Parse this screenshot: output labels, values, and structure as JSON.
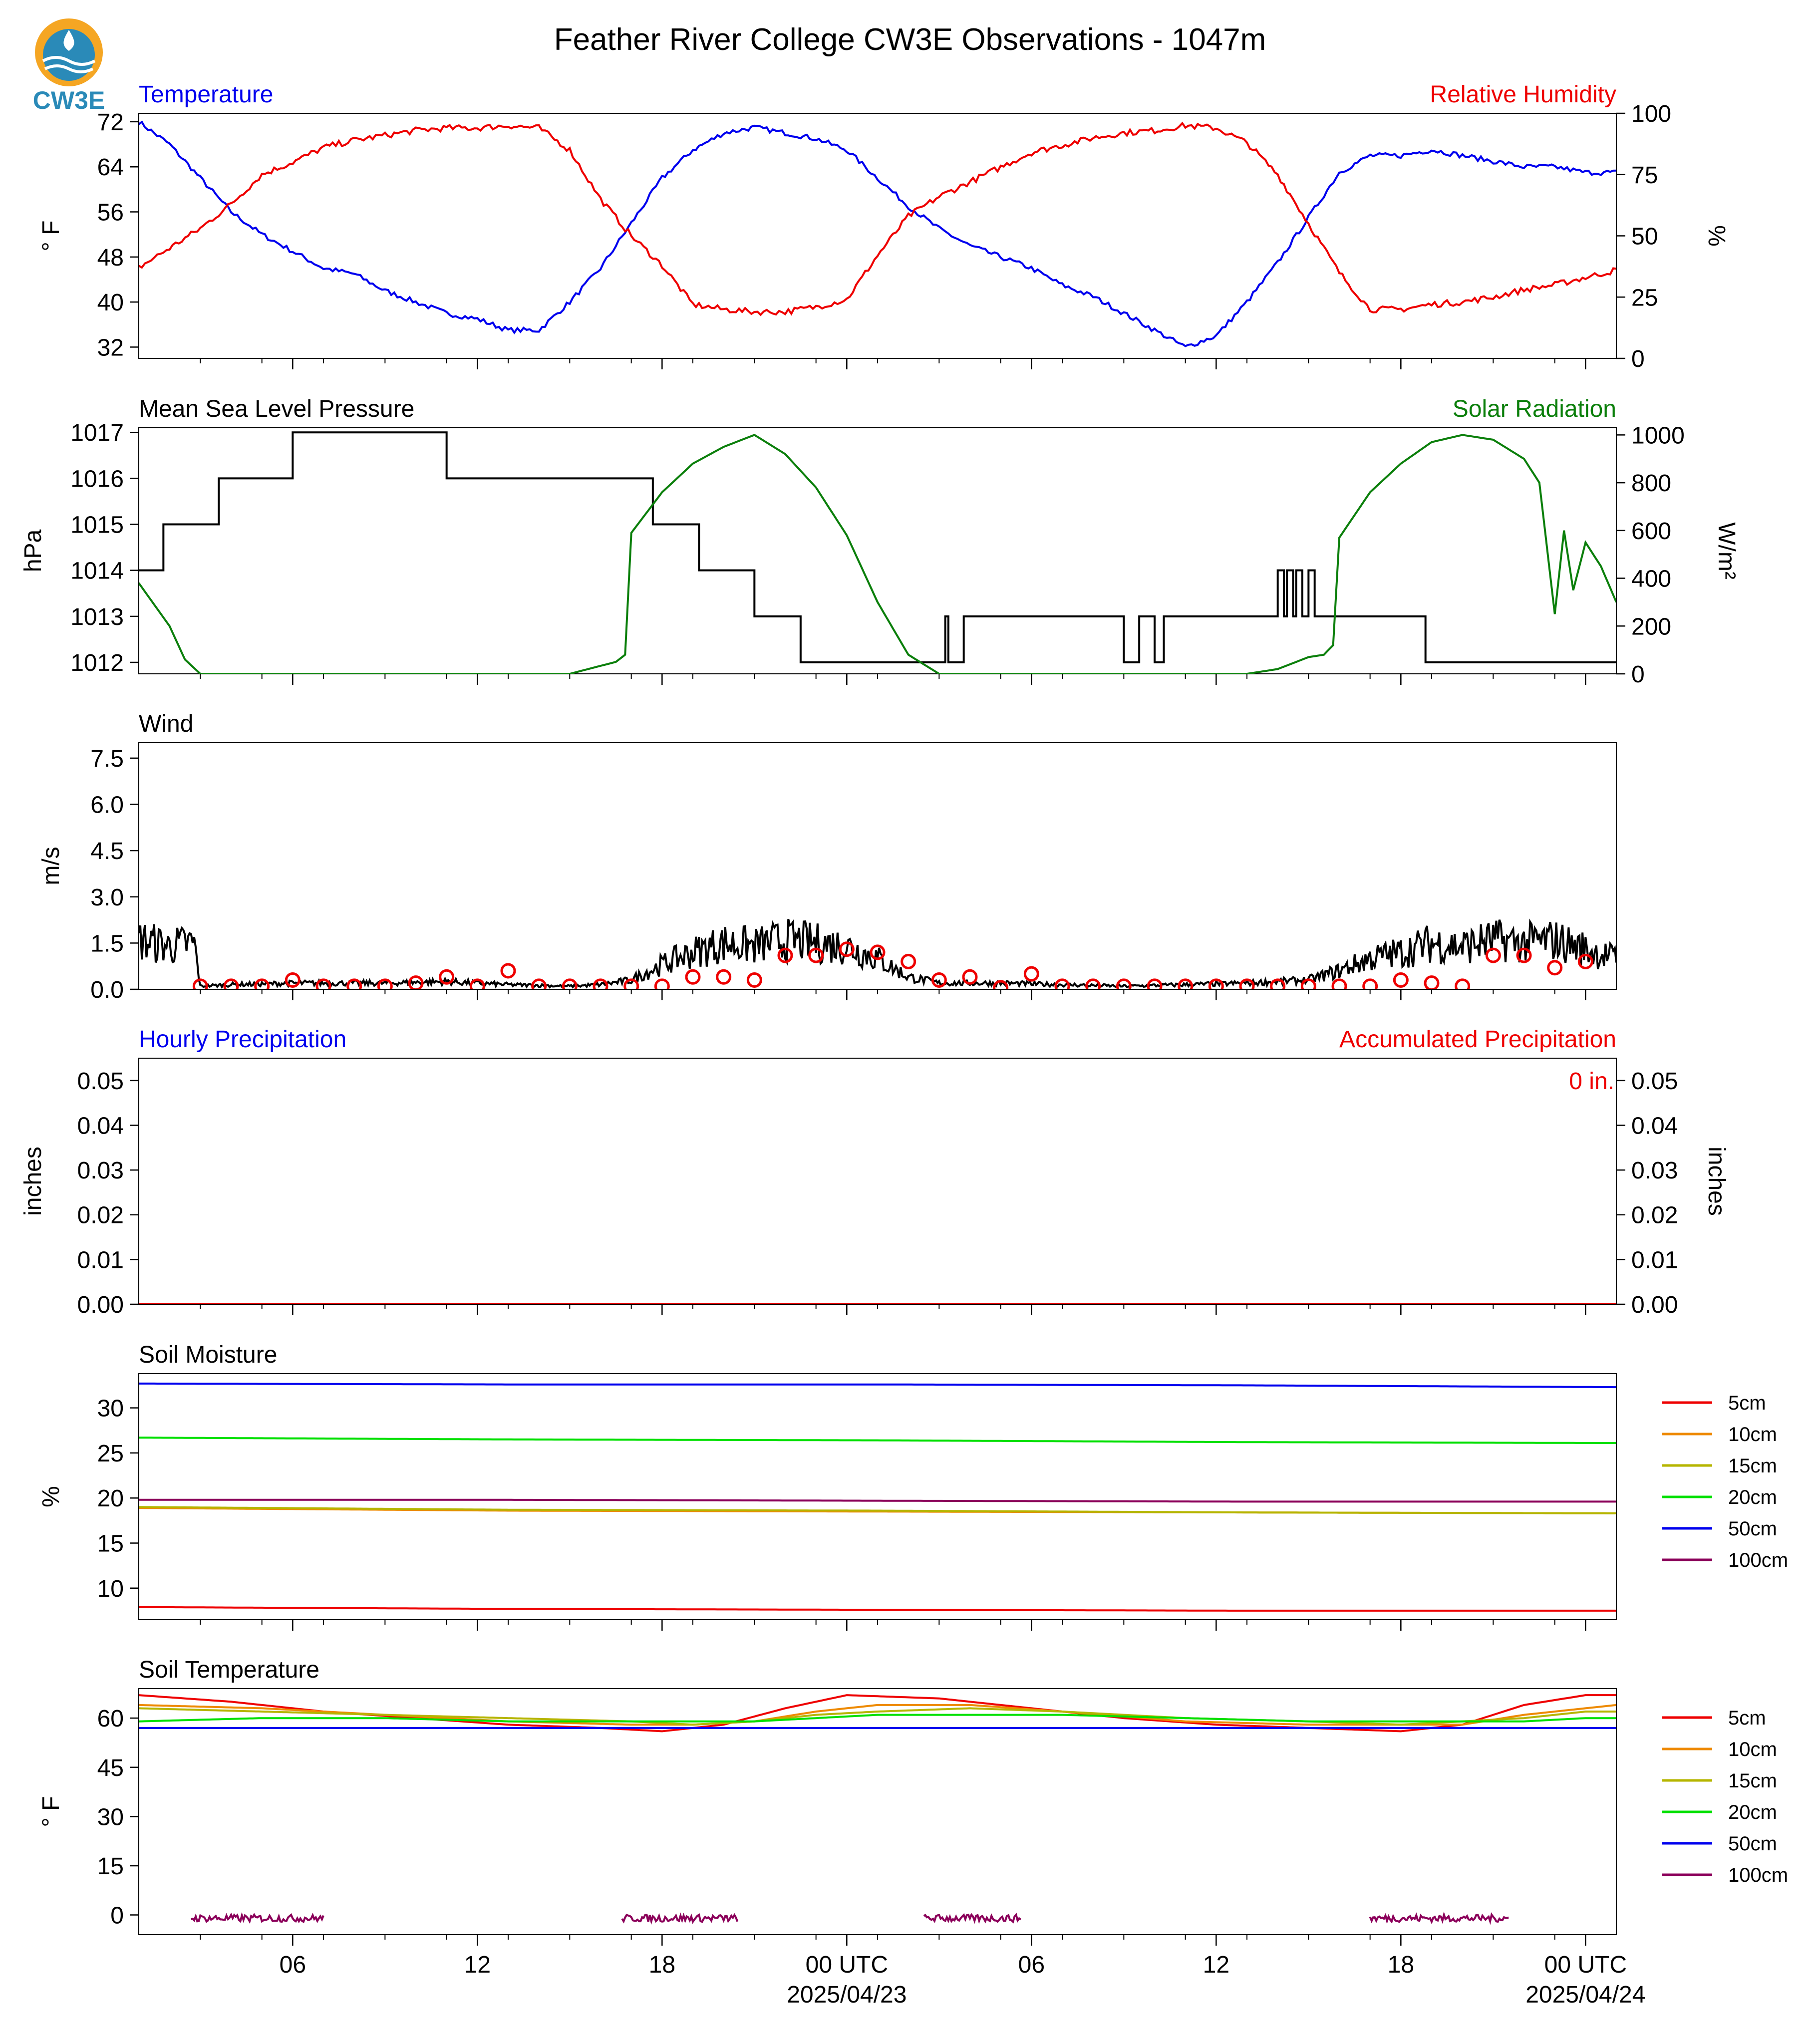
{
  "logo": {
    "text": "CW3E",
    "color": "#2a8ab8",
    "accent": "#f5a623"
  },
  "figure_title": "Feather River College CW3E Observations - 1047m",
  "time_axis": {
    "range_hours": [
      0,
      48
    ],
    "ticks": [
      {
        "h": 5,
        "label": "06",
        "date": ""
      },
      {
        "h": 11,
        "label": "12",
        "date": ""
      },
      {
        "h": 17,
        "label": "18",
        "date": ""
      },
      {
        "h": 23,
        "label": "00 UTC",
        "date": "2025/04/23"
      },
      {
        "h": 29,
        "label": "06",
        "date": ""
      },
      {
        "h": 35,
        "label": "12",
        "date": ""
      },
      {
        "h": 41,
        "label": "18",
        "date": ""
      },
      {
        "h": 47,
        "label": "00 UTC",
        "date": "2025/04/24"
      }
    ]
  },
  "chart_data": [
    {
      "type": "line",
      "title_left": "Temperature",
      "title_right": "Relative Humidity",
      "ylabel_left": "° F",
      "ylabel_right": "%",
      "ylim_left": [
        30,
        73.5
      ],
      "ylim_right": [
        0,
        100
      ],
      "yticks_left": [
        "32",
        "40",
        "48",
        "56",
        "64",
        "72"
      ],
      "yticks_right": [
        "0",
        "25",
        "50",
        "75",
        "100"
      ],
      "series": [
        {
          "axis": "left",
          "color": "#0000ee",
          "x": [
            0,
            1,
            2,
            3,
            4,
            5,
            6,
            7,
            8,
            9,
            10,
            11,
            12,
            13,
            14,
            15,
            16,
            17,
            18,
            19,
            20,
            21,
            22,
            23,
            24,
            25,
            26,
            27,
            28,
            29,
            30,
            31,
            32,
            33,
            34,
            35,
            36,
            37,
            38,
            39,
            40,
            41,
            42,
            43,
            44,
            45,
            46,
            47,
            48
          ],
          "y": [
            72,
            68,
            62,
            56,
            52,
            49,
            46,
            45,
            42,
            40,
            38,
            37,
            35,
            35,
            40,
            46,
            54,
            62,
            67,
            70,
            71,
            70,
            69,
            67,
            62,
            57,
            53,
            50,
            48,
            46,
            43,
            41,
            38,
            35,
            32,
            34,
            40,
            47,
            55,
            63,
            66,
            66,
            67,
            66,
            65,
            64,
            64,
            63,
            63
          ]
        },
        {
          "axis": "right",
          "color": "#ee0000",
          "x": [
            0,
            1,
            2,
            3,
            4,
            5,
            6,
            7,
            8,
            9,
            10,
            11,
            12,
            13,
            14,
            15,
            16,
            17,
            18,
            19,
            20,
            21,
            22,
            23,
            24,
            25,
            26,
            27,
            28,
            29,
            30,
            31,
            32,
            33,
            34,
            35,
            36,
            37,
            38,
            39,
            40,
            41,
            42,
            43,
            44,
            45,
            46,
            47,
            48
          ],
          "y": [
            37,
            45,
            53,
            63,
            75,
            80,
            86,
            89,
            91,
            93,
            94,
            94,
            95,
            94,
            85,
            65,
            50,
            38,
            22,
            20,
            19,
            19,
            21,
            24,
            42,
            58,
            66,
            72,
            78,
            84,
            87,
            90,
            92,
            93,
            95,
            94,
            88,
            75,
            55,
            35,
            20,
            20,
            22,
            23,
            25,
            28,
            30,
            33,
            36
          ]
        }
      ]
    },
    {
      "type": "line",
      "title_left": "Mean Sea Level Pressure",
      "title_right": "Solar Radiation",
      "ylabel_left": "hPa",
      "ylabel_right": "W/m²",
      "ylim_left": [
        1011.75,
        1017.1
      ],
      "ylim_right": [
        0,
        1030
      ],
      "yticks_left": [
        "1012",
        "1013",
        "1014",
        "1015",
        "1016",
        "1017"
      ],
      "yticks_right": [
        "0",
        "200",
        "400",
        "600",
        "800",
        "1000"
      ],
      "series": [
        {
          "axis": "left",
          "color": "#000000",
          "step": true,
          "x": [
            0,
            0.8,
            2.6,
            5,
            9,
            10,
            15,
            16.7,
            17.2,
            18.2,
            20,
            21.5,
            26.2,
            26.3,
            26.6,
            26.8,
            32,
            32.5,
            33,
            33.3,
            37,
            37.2,
            37.3,
            37.5,
            37.6,
            37.8,
            38,
            38.2,
            41.8,
            42,
            48
          ],
          "y": [
            1014,
            1015,
            1016,
            1017,
            1017,
            1016,
            1016,
            1015,
            1015,
            1014,
            1013,
            1012,
            1013,
            1012,
            1012,
            1013,
            1012,
            1013,
            1012,
            1013,
            1014,
            1013,
            1014,
            1013,
            1014,
            1013,
            1014,
            1013,
            1012,
            1012,
            1012
          ]
        },
        {
          "axis": "right",
          "color": "#0b7f0b",
          "x": [
            0,
            1,
            1.5,
            2,
            3,
            14,
            15.5,
            15.8,
            16,
            17,
            18,
            19,
            20,
            21,
            22,
            23,
            24,
            25,
            26,
            28,
            36,
            37,
            38,
            38.5,
            38.8,
            39,
            40,
            41,
            42,
            43,
            44,
            45,
            45.5,
            46,
            46.3,
            46.6,
            47,
            47.5,
            48
          ],
          "y": [
            380,
            200,
            60,
            0,
            0,
            0,
            50,
            80,
            590,
            760,
            880,
            950,
            1000,
            920,
            780,
            580,
            300,
            80,
            0,
            0,
            0,
            20,
            70,
            80,
            120,
            570,
            760,
            880,
            970,
            1000,
            980,
            900,
            800,
            250,
            600,
            350,
            550,
            450,
            300
          ]
        }
      ]
    },
    {
      "type": "line",
      "title_left": "Wind",
      "ylabel_left": "m/s",
      "ylim_left": [
        0,
        8
      ],
      "yticks_left": [
        "0.0",
        "1.5",
        "3.0",
        "4.5",
        "6.0",
        "7.5"
      ],
      "series": [
        {
          "axis": "left",
          "color": "#000000",
          "noisy": true,
          "x": [
            0,
            1,
            1.8,
            2,
            3,
            5,
            8,
            10,
            12,
            14,
            15,
            16,
            17,
            18,
            19,
            20,
            21,
            22,
            23,
            24,
            25,
            26,
            27,
            28,
            30,
            32,
            34,
            36,
            38,
            39,
            40,
            41,
            42,
            43,
            44,
            45,
            46,
            47,
            48
          ],
          "y": [
            1.6,
            1.4,
            1.5,
            0.1,
            0.15,
            0.2,
            0.2,
            0.25,
            0.15,
            0.1,
            0.15,
            0.3,
            0.8,
            1.2,
            1.5,
            1.4,
            1.6,
            1.5,
            1.4,
            1.0,
            0.4,
            0.2,
            0.2,
            0.2,
            0.15,
            0.1,
            0.15,
            0.2,
            0.3,
            0.6,
            1.0,
            1.2,
            1.5,
            1.4,
            1.6,
            1.5,
            1.6,
            1.3,
            1.0
          ]
        },
        {
          "axis": "left",
          "color": "#ee0000",
          "markers": true,
          "x": [
            2,
            3,
            4,
            5,
            6,
            7,
            8,
            9,
            10,
            11,
            12,
            13,
            14,
            15,
            16,
            17,
            18,
            19,
            20,
            21,
            22,
            23,
            24,
            25,
            26,
            27,
            28,
            29,
            30,
            31,
            32,
            33,
            34,
            35,
            36,
            37,
            38,
            39,
            40,
            41,
            42,
            43,
            44,
            45,
            46,
            47
          ],
          "y": [
            0.1,
            0.1,
            0.1,
            0.3,
            0.1,
            0.1,
            0.1,
            0.2,
            0.4,
            0.1,
            0.6,
            0.1,
            0.1,
            0.1,
            0.1,
            0.1,
            0.4,
            0.4,
            0.3,
            1.1,
            1.1,
            1.3,
            1.2,
            0.9,
            0.3,
            0.4,
            0.05,
            0.5,
            0.1,
            0.1,
            0.1,
            0.1,
            0.1,
            0.1,
            0.1,
            0.1,
            0.1,
            0.1,
            0.1,
            0.3,
            0.2,
            0.1,
            1.1,
            1.1,
            0.7,
            0.9
          ]
        }
      ]
    },
    {
      "type": "line",
      "title_left": "Hourly Precipitation",
      "title_right": "Accumulated Precipitation",
      "annotation": "0 in.",
      "ylabel_left": "inches",
      "ylabel_right": "inches",
      "ylim_left": [
        0,
        0.055
      ],
      "ylim_right": [
        0,
        0.055
      ],
      "yticks_left": [
        "0.00",
        "0.01",
        "0.02",
        "0.03",
        "0.04",
        "0.05"
      ],
      "yticks_right": [
        "0.00",
        "0.01",
        "0.02",
        "0.03",
        "0.04",
        "0.05"
      ],
      "series": [
        {
          "axis": "left",
          "color": "#ee0000",
          "x": [
            0,
            48
          ],
          "y": [
            0,
            0
          ]
        }
      ]
    },
    {
      "type": "line",
      "title_left": "Soil Moisture",
      "ylabel_left": "%",
      "ylim_left": [
        6.5,
        33.8
      ],
      "yticks_left": [
        "10",
        "15",
        "20",
        "25",
        "30"
      ],
      "legend": [
        "5cm",
        "10cm",
        "15cm",
        "20cm",
        "50cm",
        "100cm"
      ],
      "series": [
        {
          "name": "5cm",
          "color": "#ee0000",
          "x": [
            0,
            12,
            24,
            36,
            48
          ],
          "y": [
            7.9,
            7.7,
            7.6,
            7.5,
            7.5
          ]
        },
        {
          "name": "10cm",
          "color": "#ee8a00",
          "x": [
            0,
            12,
            24,
            36,
            48
          ],
          "y": [
            18.9,
            18.6,
            18.5,
            18.4,
            18.3
          ]
        },
        {
          "name": "15cm",
          "color": "#b5b500",
          "x": [
            0,
            12,
            24,
            36,
            48
          ],
          "y": [
            19.0,
            18.7,
            18.6,
            18.4,
            18.3
          ]
        },
        {
          "name": "20cm",
          "color": "#00e000",
          "x": [
            0,
            12,
            24,
            36,
            48
          ],
          "y": [
            26.7,
            26.5,
            26.4,
            26.2,
            26.1
          ]
        },
        {
          "name": "50cm",
          "color": "#0000ee",
          "x": [
            0,
            12,
            24,
            36,
            48
          ],
          "y": [
            32.7,
            32.6,
            32.6,
            32.5,
            32.3
          ]
        },
        {
          "name": "100cm",
          "color": "#8b005a",
          "x": [
            0,
            12,
            24,
            36,
            48
          ],
          "y": [
            19.8,
            19.8,
            19.7,
            19.6,
            19.6
          ]
        }
      ]
    },
    {
      "type": "line",
      "title_left": "Soil Temperature",
      "ylabel_left": "° F",
      "ylim_left": [
        -6,
        69
      ],
      "yticks_left": [
        "0",
        "15",
        "30",
        "45",
        "60"
      ],
      "legend": [
        "5cm",
        "10cm",
        "15cm",
        "20cm",
        "50cm",
        "100cm"
      ],
      "series": [
        {
          "name": "5cm",
          "color": "#ee0000",
          "x": [
            0,
            3,
            6,
            9,
            12,
            15,
            17,
            19,
            21,
            23,
            26,
            29,
            32,
            35,
            38,
            41,
            43,
            45,
            47,
            48
          ],
          "y": [
            67,
            65,
            62,
            60,
            58,
            57,
            56,
            58,
            63,
            67,
            66,
            63,
            60,
            58,
            57,
            56,
            58,
            64,
            67,
            67
          ]
        },
        {
          "name": "10cm",
          "color": "#ee8a00",
          "x": [
            0,
            4,
            8,
            12,
            16,
            18,
            20,
            22,
            24,
            27,
            30,
            34,
            38,
            41,
            43,
            45,
            47,
            48
          ],
          "y": [
            64,
            63,
            61,
            59,
            58,
            58,
            59,
            62,
            64,
            64,
            62,
            59,
            58,
            58,
            58,
            61,
            63,
            64
          ]
        },
        {
          "name": "15cm",
          "color": "#b5b500",
          "x": [
            0,
            4,
            8,
            12,
            16,
            18,
            20,
            22,
            24,
            27,
            30,
            34,
            38,
            41,
            43,
            45,
            47,
            48
          ],
          "y": [
            63,
            62,
            61,
            60,
            59,
            58,
            59,
            61,
            62,
            63,
            62,
            60,
            59,
            58,
            59,
            60,
            62,
            62
          ]
        },
        {
          "name": "20cm",
          "color": "#00e000",
          "x": [
            0,
            4,
            8,
            12,
            16,
            18,
            20,
            22,
            24,
            27,
            30,
            34,
            38,
            41,
            43,
            45,
            47,
            48
          ],
          "y": [
            59,
            60,
            60,
            59,
            59,
            59,
            59,
            60,
            61,
            61,
            61,
            60,
            59,
            59,
            59,
            59,
            60,
            60
          ]
        },
        {
          "name": "50cm",
          "color": "#0000ee",
          "x": [
            0,
            12,
            24,
            36,
            48
          ],
          "y": [
            57,
            57,
            57,
            57,
            57
          ]
        },
        {
          "name": "100cm",
          "color": "#8b005a",
          "noisy": true,
          "segments": [
            [
              1.7,
              6
            ],
            [
              15.7,
              19.5
            ],
            [
              25.5,
              28.7
            ],
            [
              40,
              44.5
            ]
          ],
          "y": [
            -1,
            -1,
            -1,
            -1
          ]
        }
      ]
    }
  ]
}
